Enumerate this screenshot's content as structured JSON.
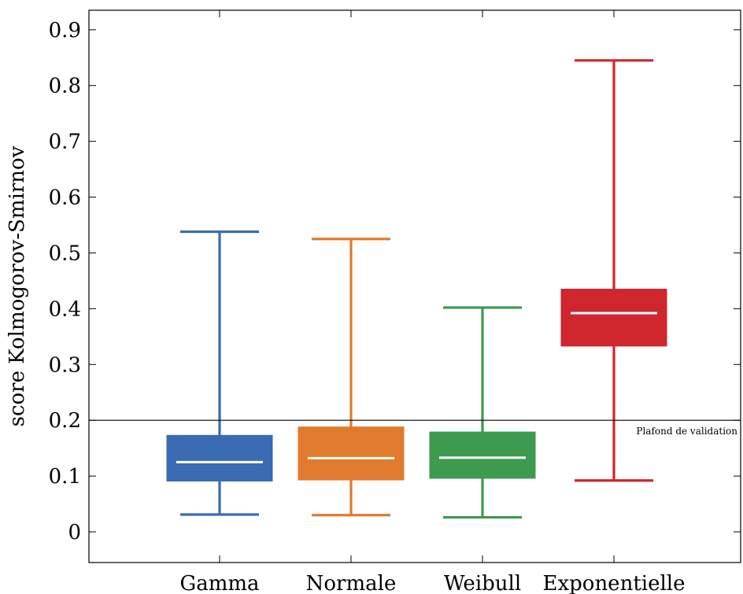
{
  "chart_data": {
    "type": "box",
    "title": "",
    "xlabel": "",
    "ylabel": "score Kolmogorov-Smirnov",
    "ylim": [
      -0.055,
      0.935
    ],
    "yticks": [
      0,
      0.1,
      0.2,
      0.3,
      0.4,
      0.5,
      0.6,
      0.7,
      0.8,
      0.9
    ],
    "ytick_labels": [
      "0",
      "0.1",
      "0.2",
      "0.3",
      "0.4",
      "0.5",
      "0.6",
      "0.7",
      "0.8",
      "0.9"
    ],
    "grid": false,
    "categories": [
      "Gamma",
      "Normale",
      "Weibull",
      "Exponentielle"
    ],
    "boxes": [
      {
        "label": "Gamma",
        "whisker_low": 0.031,
        "q1": 0.091,
        "median": 0.125,
        "q3": 0.173,
        "whisker_high": 0.538,
        "color": "#3a6bb3"
      },
      {
        "label": "Normale",
        "whisker_low": 0.03,
        "q1": 0.093,
        "median": 0.132,
        "q3": 0.188,
        "whisker_high": 0.525,
        "color": "#e07b2e"
      },
      {
        "label": "Weibull",
        "whisker_low": 0.026,
        "q1": 0.096,
        "median": 0.133,
        "q3": 0.179,
        "whisker_high": 0.402,
        "color": "#3d9a4e"
      },
      {
        "label": "Exponentielle",
        "whisker_low": 0.092,
        "q1": 0.333,
        "median": 0.392,
        "q3": 0.435,
        "whisker_high": 0.845,
        "color": "#cf252c"
      }
    ],
    "reference_line": {
      "y": 0.2,
      "label": "Plafond de validation",
      "color": "#000000"
    }
  }
}
